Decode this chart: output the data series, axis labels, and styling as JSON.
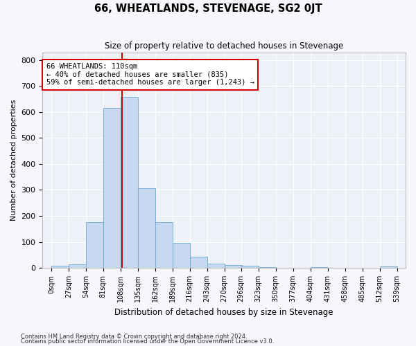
{
  "title": "66, WHEATLANDS, STEVENAGE, SG2 0JT",
  "subtitle": "Size of property relative to detached houses in Stevenage",
  "xlabel": "Distribution of detached houses by size in Stevenage",
  "ylabel": "Number of detached properties",
  "bar_color": "#c6d9f0",
  "bar_edge_color": "#6aaad4",
  "background_color": "#eef2f8",
  "grid_color": "#ffffff",
  "bins": [
    0,
    27,
    54,
    81,
    108,
    135,
    162,
    189,
    216,
    243,
    270,
    296,
    323,
    350,
    377,
    404,
    431,
    458,
    485,
    512,
    539
  ],
  "counts": [
    8,
    14,
    175,
    615,
    657,
    307,
    175,
    97,
    42,
    16,
    12,
    8,
    4,
    0,
    0,
    3,
    0,
    0,
    0,
    5
  ],
  "property_size": 110,
  "property_label": "66 WHEATLANDS: 110sqm",
  "annotation_line1": "← 40% of detached houses are smaller (835)",
  "annotation_line2": "59% of semi-detached houses are larger (1,243) →",
  "annotation_box_color": "#ffffff",
  "annotation_box_edge": "#cc0000",
  "vline_color": "#cc0000",
  "ylim": [
    0,
    830
  ],
  "yticks": [
    0,
    100,
    200,
    300,
    400,
    500,
    600,
    700,
    800
  ],
  "footer1": "Contains HM Land Registry data © Crown copyright and database right 2024.",
  "footer2": "Contains public sector information licensed under the Open Government Licence v3.0."
}
